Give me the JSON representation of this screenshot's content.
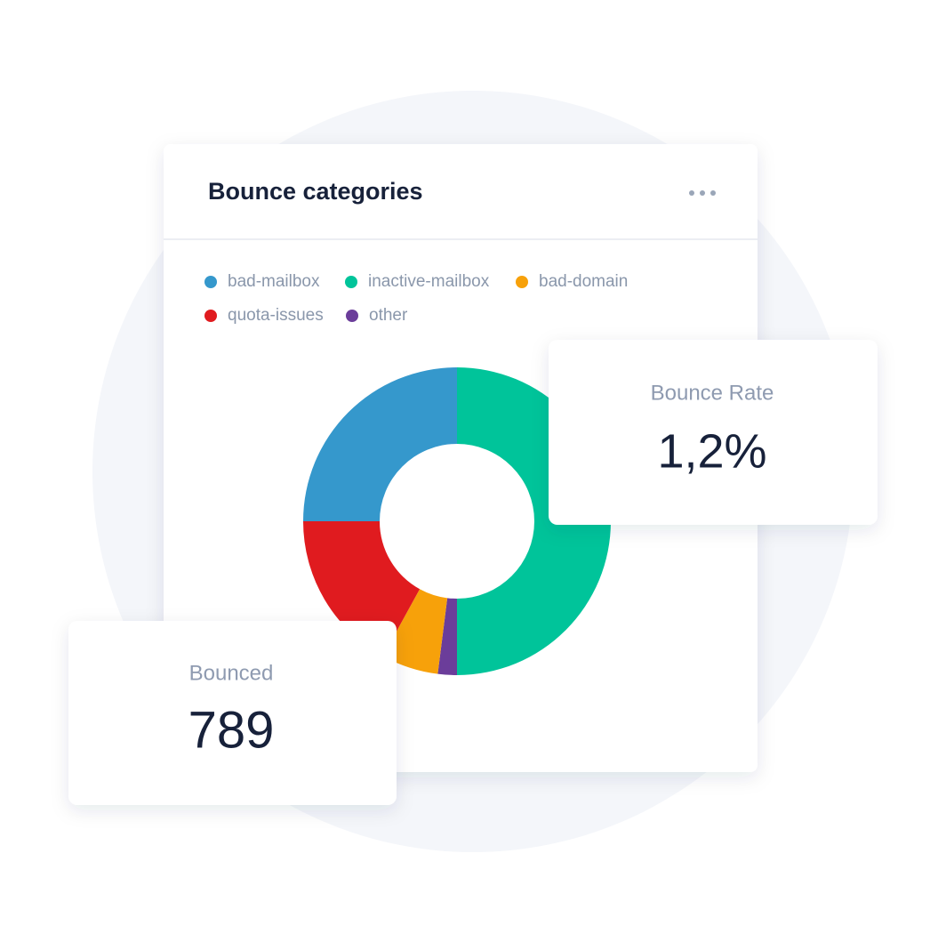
{
  "chart_data": {
    "type": "donut",
    "title": "Bounce categories",
    "categories": [
      "bad-mailbox",
      "inactive-mailbox",
      "bad-domain",
      "quota-issues",
      "other"
    ],
    "values": [
      25,
      50,
      6,
      17,
      2
    ],
    "colors": [
      "#3598cc",
      "#00c49a",
      "#f7a10a",
      "#e01b1f",
      "#6b3d9a"
    ]
  },
  "stat_cards": [
    {
      "label": "Bounce Rate",
      "value": "1,2%"
    },
    {
      "label": "Bounced",
      "value": "789"
    }
  ]
}
